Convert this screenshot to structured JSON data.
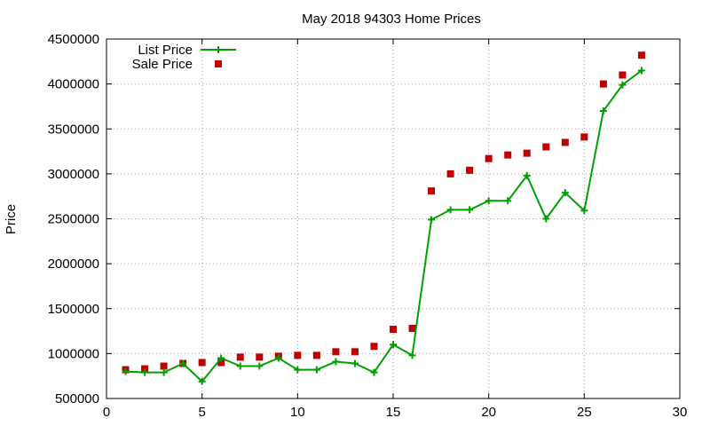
{
  "chart_data": {
    "type": "line",
    "title": "May 2018 94303 Home Prices",
    "xlabel": "",
    "ylabel": "Price",
    "xlim": [
      0,
      30
    ],
    "ylim": [
      500000,
      4500000
    ],
    "x_ticks": [
      0,
      5,
      10,
      15,
      20,
      25,
      30
    ],
    "y_ticks": [
      500000,
      1000000,
      1500000,
      2000000,
      2500000,
      3000000,
      3500000,
      4000000,
      4500000
    ],
    "grid": true,
    "legend_position": "top-left",
    "x": [
      1,
      2,
      3,
      4,
      5,
      6,
      7,
      8,
      9,
      10,
      11,
      12,
      13,
      14,
      15,
      16,
      17,
      18,
      19,
      20,
      21,
      22,
      23,
      24,
      25,
      26,
      27,
      28
    ],
    "series": [
      {
        "name": "List Price",
        "style": "line-plus",
        "color": "#00a000",
        "values": [
          800000,
          790000,
          790000,
          890000,
          690000,
          950000,
          860000,
          860000,
          950000,
          820000,
          820000,
          910000,
          890000,
          790000,
          1100000,
          980000,
          2490000,
          2600000,
          2600000,
          2700000,
          2700000,
          2980000,
          2500000,
          2790000,
          2590000,
          3700000,
          3990000,
          4150000
        ]
      },
      {
        "name": "Sale Price",
        "style": "square-marker",
        "color": "#c00000",
        "values": [
          820000,
          830000,
          860000,
          890000,
          900000,
          900000,
          960000,
          960000,
          970000,
          980000,
          980000,
          1020000,
          1020000,
          1080000,
          1270000,
          1280000,
          2810000,
          3000000,
          3040000,
          3170000,
          3210000,
          3230000,
          3300000,
          3350000,
          3410000,
          4000000,
          4100000,
          4320000
        ]
      }
    ]
  }
}
